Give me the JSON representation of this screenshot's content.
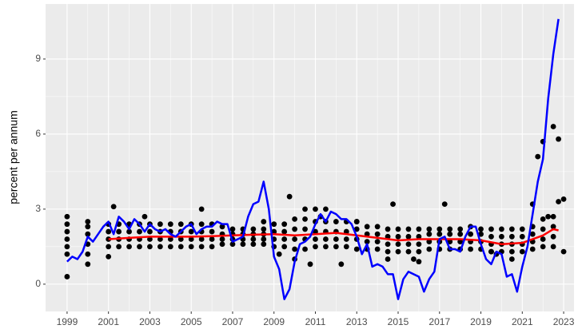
{
  "chart_data": {
    "type": "scatter",
    "ylabel": "percent per annum",
    "xlim": [
      1997.96,
      2023.5
    ],
    "ylim": [
      -1.09,
      11.2
    ],
    "xticks": [
      1999,
      2001,
      2003,
      2005,
      2007,
      2009,
      2011,
      2013,
      2015,
      2017,
      2019,
      2021,
      2023
    ],
    "yticks": [
      0,
      3,
      6,
      9
    ],
    "grid": true,
    "series": [
      {
        "type": "scatter",
        "color": "#000000",
        "x": [
          1999,
          1999,
          1999,
          1999,
          1999,
          1999,
          1999,
          2000,
          2000,
          2000,
          2000,
          2000,
          2000,
          2001,
          2001,
          2001,
          2001,
          2001.5,
          2001.5,
          2001.5,
          2001.5,
          2002,
          2002,
          2002,
          2002,
          2002.5,
          2002.5,
          2002.5,
          2002.5,
          2003,
          2003,
          2003,
          2003,
          2003.5,
          2003.5,
          2003.5,
          2003.5,
          2004,
          2004,
          2004,
          2004,
          2004.5,
          2004.5,
          2004.5,
          2004.5,
          2005,
          2005,
          2005,
          2005,
          2005.5,
          2005.5,
          2005.5,
          2005.5,
          2006,
          2006,
          2006,
          2006,
          2006.5,
          2006.5,
          2006.5,
          2006.5,
          2007,
          2007,
          2007,
          2007,
          2007.5,
          2007.5,
          2007.5,
          2007.5,
          2008,
          2008,
          2008,
          2008,
          2008.5,
          2008.5,
          2008.5,
          2008.5,
          2009,
          2009,
          2009,
          2009,
          2009.5,
          2009.5,
          2009.5,
          2009.5,
          2010,
          2010,
          2010,
          2010,
          2010.5,
          2010.5,
          2010.5,
          2010.5,
          2011,
          2011,
          2011,
          2011,
          2011.5,
          2011.5,
          2011.5,
          2011.5,
          2012,
          2012,
          2012,
          2012,
          2012.5,
          2012.5,
          2012.5,
          2012.5,
          2013,
          2013,
          2013,
          2013,
          2013.5,
          2013.5,
          2013.5,
          2013.5,
          2014,
          2014,
          2014,
          2014,
          2014.5,
          2014.5,
          2014.5,
          2014.5,
          2015,
          2015,
          2015,
          2015,
          2015.5,
          2015.5,
          2015.5,
          2015.5,
          2016,
          2016,
          2016,
          2016,
          2016.5,
          2016.5,
          2016.5,
          2016.5,
          2017,
          2017,
          2017,
          2017,
          2017.5,
          2017.5,
          2017.5,
          2017.5,
          2018,
          2018,
          2018,
          2018,
          2018.5,
          2018.5,
          2018.5,
          2018.5,
          2019,
          2019,
          2019,
          2019,
          2019.5,
          2019.5,
          2019.5,
          2019.5,
          2020,
          2020,
          2020,
          2020,
          2020.5,
          2020.5,
          2020.5,
          2020.5,
          2021,
          2021,
          2021,
          2021,
          2021.5,
          2021.5,
          2021.5,
          2021.5,
          2022,
          2022,
          2022,
          2022,
          2022.5,
          2022.5,
          2022.5,
          2022.5,
          2001.25,
          2002.75,
          2005.5,
          2009.75,
          2010,
          2010.5,
          2010.75,
          2011,
          2011.5,
          2012.25,
          2014.75,
          2014.5,
          2015.75,
          2016,
          2017.25,
          2019.5,
          2020.5,
          2021.5,
          2021.75,
          2022,
          2022.5,
          2022.75,
          2022.75,
          2023,
          2023,
          2022.25,
          2011.25,
          2013,
          2009.25,
          2001,
          2019.75,
          2008.5
        ],
        "values": [
          0.3,
          1.2,
          1.5,
          1.8,
          2.1,
          2.4,
          2.7,
          0.8,
          1.2,
          1.6,
          2.0,
          2.3,
          2.5,
          1.5,
          1.8,
          2.1,
          2.4,
          1.5,
          1.8,
          2.1,
          2.4,
          1.5,
          1.8,
          2.1,
          2.4,
          1.5,
          1.8,
          2.1,
          2.4,
          1.5,
          1.8,
          2.1,
          2.4,
          1.5,
          1.8,
          2.1,
          2.4,
          1.5,
          1.8,
          2.1,
          2.4,
          1.5,
          1.8,
          2.1,
          2.4,
          1.5,
          1.8,
          2.1,
          2.4,
          1.5,
          1.8,
          2.1,
          2.4,
          1.5,
          1.8,
          2.1,
          2.4,
          1.6,
          1.8,
          2.0,
          2.3,
          1.6,
          1.8,
          2.0,
          2.2,
          1.6,
          1.8,
          2.0,
          2.2,
          1.6,
          1.8,
          2.0,
          2.2,
          1.6,
          1.8,
          2.0,
          2.2,
          1.5,
          1.8,
          2.1,
          2.4,
          1.5,
          1.8,
          2.1,
          2.4,
          1.4,
          1.8,
          2.2,
          2.6,
          1.4,
          1.8,
          2.2,
          2.6,
          1.5,
          1.8,
          2.1,
          2.5,
          1.5,
          1.8,
          2.1,
          2.5,
          1.5,
          1.8,
          2.1,
          2.5,
          1.5,
          1.8,
          2.1,
          2.5,
          1.4,
          1.8,
          2.2,
          2.5,
          1.4,
          1.7,
          2.0,
          2.3,
          1.4,
          1.7,
          2.0,
          2.3,
          1.3,
          1.6,
          1.9,
          2.2,
          1.3,
          1.6,
          1.9,
          2.2,
          1.3,
          1.6,
          1.9,
          2.2,
          1.3,
          1.6,
          1.9,
          2.2,
          1.4,
          1.7,
          2.0,
          2.2,
          1.4,
          1.7,
          2.0,
          2.2,
          1.4,
          1.7,
          2.0,
          2.2,
          1.4,
          1.7,
          2.0,
          2.2,
          1.4,
          1.7,
          2.0,
          2.3,
          1.4,
          1.7,
          2.0,
          2.2,
          1.3,
          1.6,
          1.9,
          2.2,
          1.3,
          1.6,
          1.9,
          2.2,
          1.3,
          1.6,
          1.9,
          2.2,
          1.3,
          1.6,
          1.9,
          2.2,
          1.4,
          1.7,
          2.0,
          2.3,
          1.5,
          1.8,
          2.2,
          2.6,
          1.5,
          1.9,
          2.3,
          2.7,
          3.1,
          2.7,
          3.0,
          3.5,
          1.0,
          3.0,
          0.8,
          3.0,
          3.0,
          0.8,
          3.2,
          1.0,
          1.0,
          0.9,
          3.2,
          1.3,
          1.0,
          3.2,
          5.1,
          5.7,
          6.3,
          5.8,
          3.3,
          3.4,
          1.3,
          2.7,
          2.7,
          2.5,
          1.2,
          1.1,
          1.2,
          2.5
        ]
      },
      {
        "type": "line",
        "color": "#ff0000",
        "x": [
          2001,
          2002,
          2003,
          2004,
          2005,
          2006,
          2007,
          2008,
          2009,
          2010,
          2011,
          2012,
          2013,
          2014,
          2015,
          2016,
          2017,
          2018,
          2019,
          2020,
          2021,
          2022,
          2022.5,
          2022.75
        ],
        "values": [
          1.8,
          1.85,
          1.9,
          1.9,
          1.9,
          1.92,
          1.95,
          1.98,
          2.0,
          1.95,
          2.0,
          2.05,
          1.95,
          1.85,
          1.75,
          1.8,
          1.8,
          1.8,
          1.75,
          1.6,
          1.65,
          1.95,
          2.2,
          2.15
        ]
      },
      {
        "type": "line",
        "color": "#0000ff",
        "x": [
          1999,
          1999.25,
          1999.5,
          1999.75,
          2000,
          2000.25,
          2000.5,
          2000.75,
          2001,
          2001.25,
          2001.5,
          2001.75,
          2002,
          2002.25,
          2002.5,
          2002.75,
          2003,
          2003.25,
          2003.5,
          2003.75,
          2004,
          2004.25,
          2004.5,
          2004.75,
          2005,
          2005.25,
          2005.5,
          2005.75,
          2006,
          2006.25,
          2006.5,
          2006.75,
          2007,
          2007.25,
          2007.5,
          2007.75,
          2008,
          2008.25,
          2008.5,
          2008.75,
          2009,
          2009.25,
          2009.5,
          2009.75,
          2010,
          2010.25,
          2010.5,
          2010.75,
          2011,
          2011.25,
          2011.5,
          2011.75,
          2012,
          2012.25,
          2012.5,
          2012.75,
          2013,
          2013.25,
          2013.5,
          2013.75,
          2014,
          2014.25,
          2014.5,
          2014.75,
          2015,
          2015.25,
          2015.5,
          2015.75,
          2016,
          2016.25,
          2016.5,
          2016.75,
          2017,
          2017.25,
          2017.5,
          2017.75,
          2018,
          2018.25,
          2018.5,
          2018.75,
          2019,
          2019.25,
          2019.5,
          2019.75,
          2020,
          2020.25,
          2020.5,
          2020.75,
          2021,
          2021.25,
          2021.5,
          2021.75,
          2022,
          2022.25,
          2022.5,
          2022.75
        ],
        "values": [
          0.9,
          1.1,
          1.0,
          1.3,
          1.9,
          1.7,
          2.0,
          2.3,
          2.5,
          2.0,
          2.7,
          2.5,
          2.2,
          2.6,
          2.4,
          2.1,
          2.4,
          2.2,
          2.1,
          2.2,
          2.0,
          1.9,
          2.1,
          2.3,
          2.4,
          2.0,
          2.2,
          2.3,
          2.3,
          2.5,
          2.4,
          2.4,
          1.7,
          1.8,
          1.9,
          2.7,
          3.2,
          3.3,
          4.1,
          3.0,
          1.1,
          0.6,
          -0.6,
          -0.2,
          0.9,
          1.6,
          1.7,
          1.9,
          2.4,
          2.8,
          2.5,
          2.9,
          2.8,
          2.6,
          2.6,
          2.4,
          1.9,
          1.2,
          1.6,
          0.7,
          0.8,
          0.7,
          0.4,
          0.4,
          -0.6,
          0.2,
          0.5,
          0.4,
          0.3,
          -0.3,
          0.2,
          0.5,
          1.8,
          1.9,
          1.4,
          1.4,
          1.3,
          1.9,
          2.3,
          2.3,
          1.6,
          1.0,
          0.8,
          1.3,
          1.2,
          0.3,
          0.4,
          -0.3,
          0.7,
          1.5,
          2.8,
          4.1,
          5.0,
          7.4,
          9.2,
          10.6
        ]
      }
    ]
  }
}
